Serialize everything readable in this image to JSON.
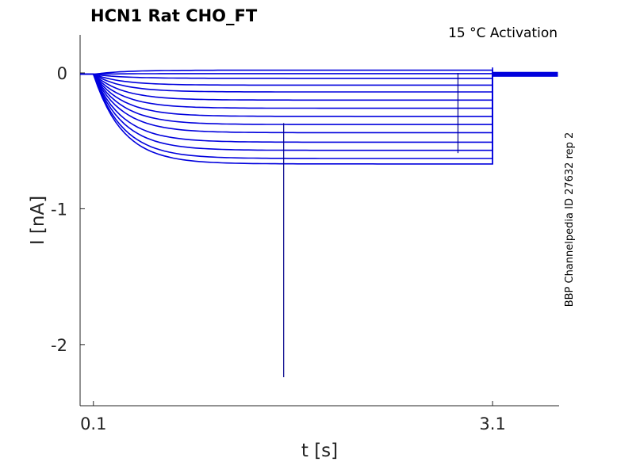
{
  "chart_data": {
    "type": "line",
    "title": "HCN1  Rat  CHO_FT",
    "annotation": "15 °C  Activation",
    "side_label": "BBP Channelpedia ID 27632 rep 2",
    "xlabel": "t [s]",
    "ylabel": "I [nA]",
    "xlim": [
      0.0,
      3.6
    ],
    "ylim": [
      -2.45,
      0.28
    ],
    "x_ticks": [
      0.1,
      3.1
    ],
    "x_tick_labels": [
      "0.1",
      "3.1"
    ],
    "y_ticks": [
      0,
      -1,
      -2
    ],
    "y_tick_labels": [
      "0",
      "-1",
      "-2"
    ],
    "grid": false,
    "line_color": "#0000dd",
    "step_start_s": 0.1,
    "step_end_s": 3.1,
    "baseline_nA": -0.01,
    "series": [
      {
        "steady_nA": 0.02
      },
      {
        "steady_nA": -0.005
      },
      {
        "steady_nA": -0.04
      },
      {
        "steady_nA": -0.09
      },
      {
        "steady_nA": -0.14
      },
      {
        "steady_nA": -0.2
      },
      {
        "steady_nA": -0.26
      },
      {
        "steady_nA": -0.32
      },
      {
        "steady_nA": -0.38
      },
      {
        "steady_nA": -0.44
      },
      {
        "steady_nA": -0.51
      },
      {
        "steady_nA": -0.57
      },
      {
        "steady_nA": -0.63
      },
      {
        "steady_nA": -0.67
      }
    ],
    "artifacts": [
      {
        "t_s": 1.53,
        "from_nA": -0.37,
        "to_nA": -2.24
      },
      {
        "t_s": 2.84,
        "from_nA": 0.0,
        "to_nA": -0.59
      }
    ]
  }
}
